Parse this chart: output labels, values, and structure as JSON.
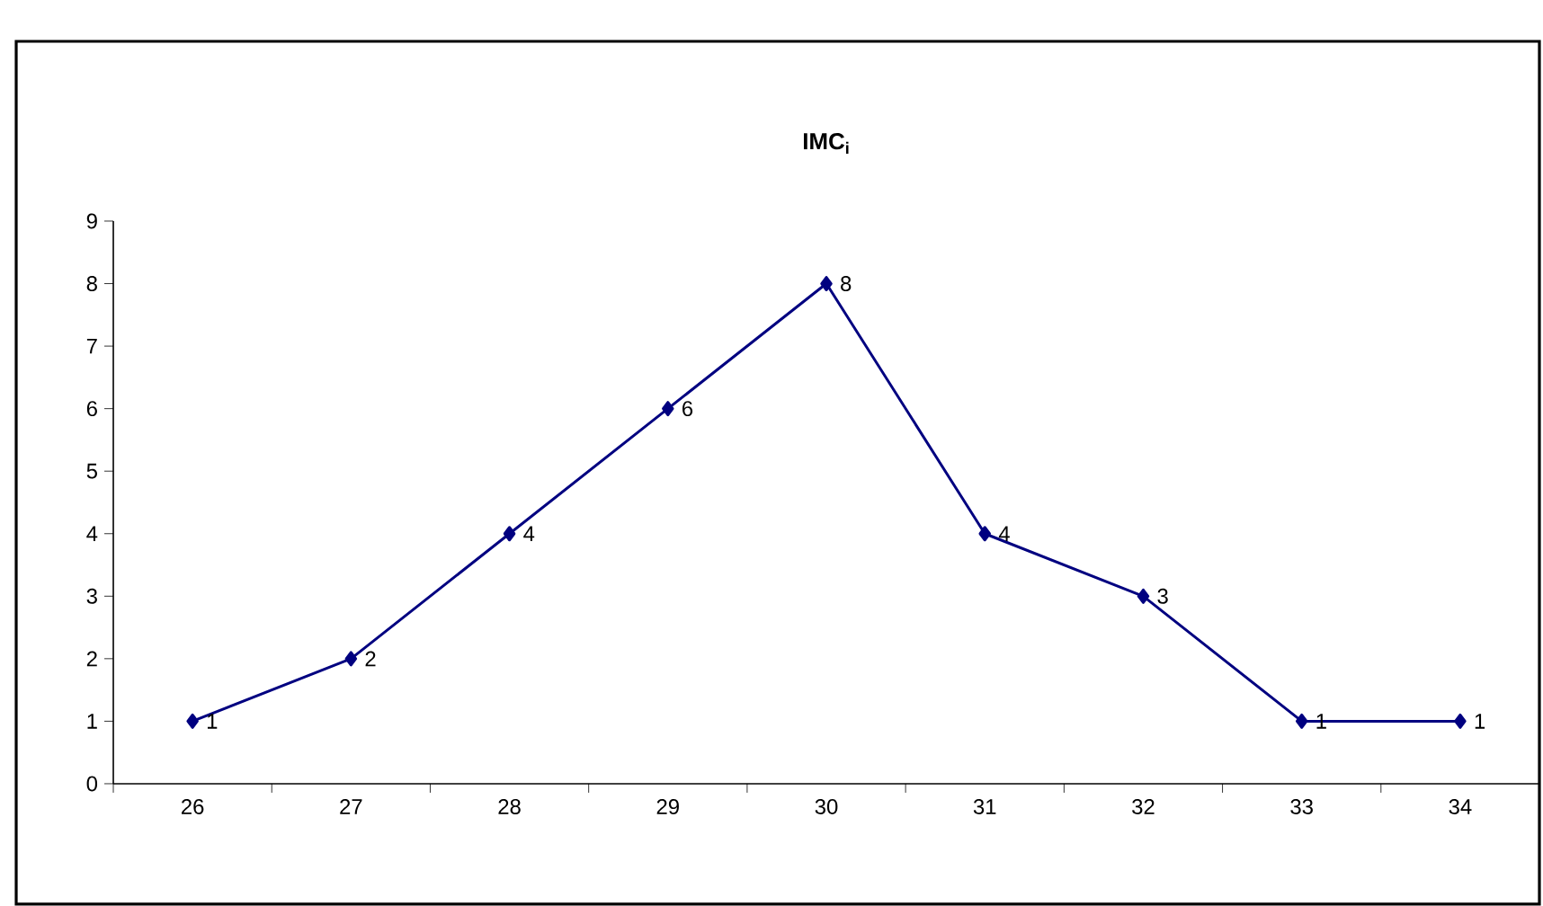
{
  "chart_data": {
    "type": "line",
    "title": "IMC$_{i}$",
    "categories": [
      "26",
      "27",
      "28",
      "29",
      "30",
      "31",
      "32",
      "33",
      "34"
    ],
    "values": [
      1,
      2,
      4,
      6,
      8,
      4,
      3,
      1,
      1
    ],
    "color": "#000080",
    "ylim": [
      0,
      9
    ],
    "yticks": [
      0,
      1,
      2,
      3,
      4,
      5,
      6,
      7,
      8,
      9
    ],
    "marker": "diamond",
    "line_style": "solid",
    "data_labels": true,
    "grid": false
  }
}
